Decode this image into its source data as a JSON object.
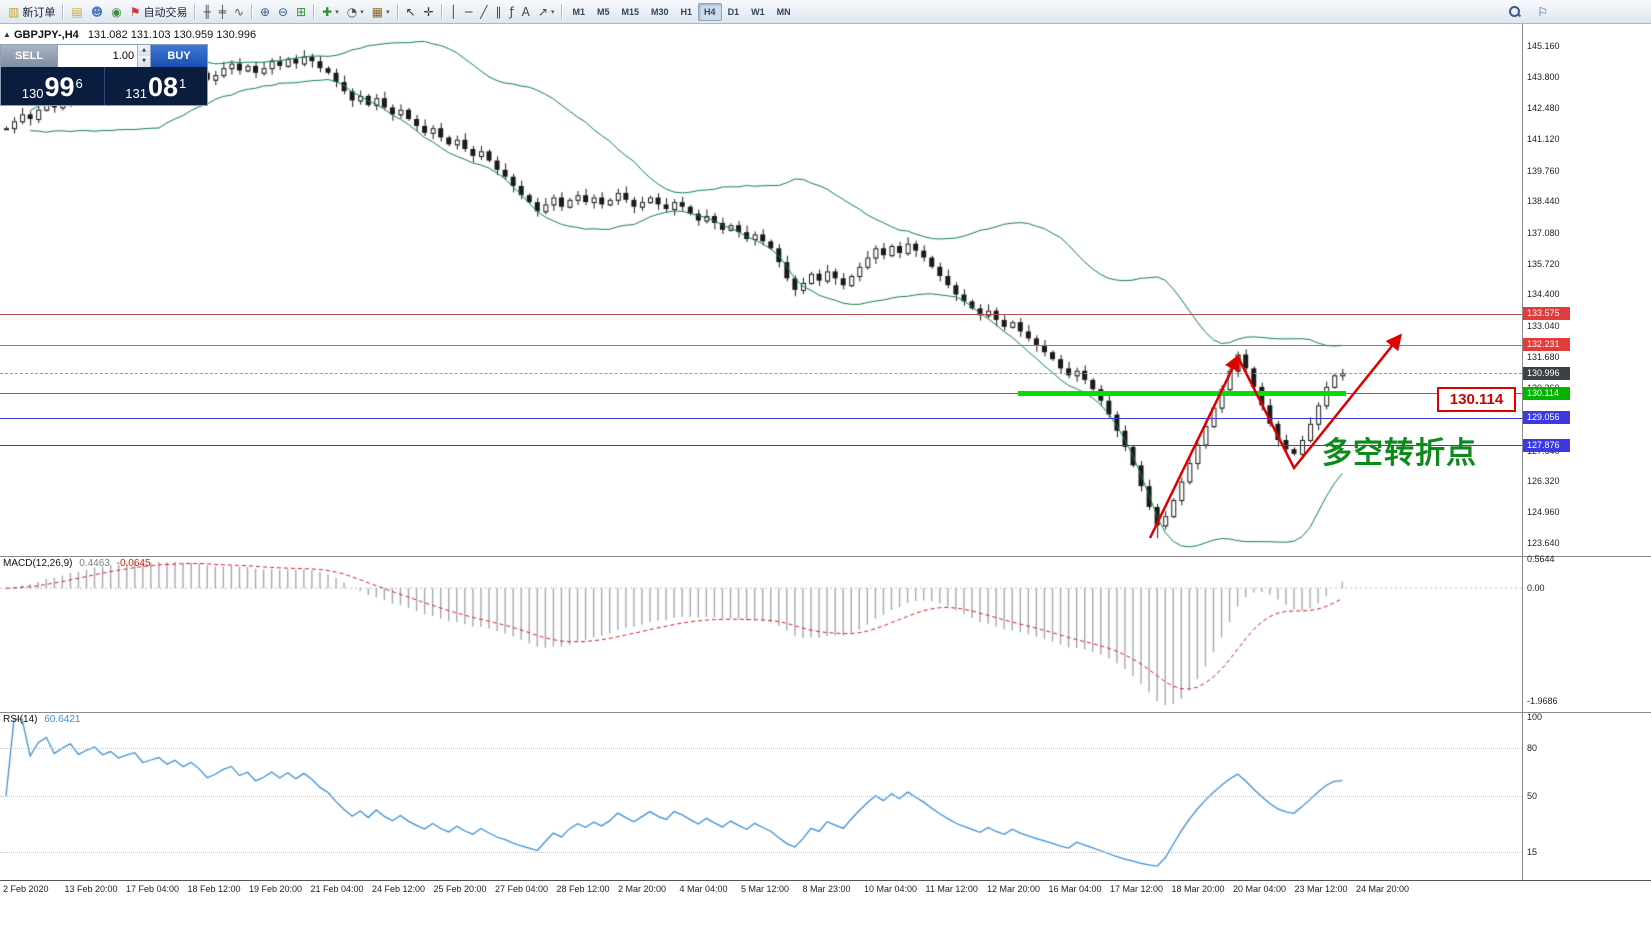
{
  "toolbar": {
    "items": [
      {
        "name": "new-order-button",
        "icon": "new-order-icon",
        "glyph": "▥",
        "color": "#c9a227",
        "label": "新订单"
      },
      {
        "type": "sep"
      },
      {
        "name": "chart-window-button",
        "icon": "chart-window-icon",
        "glyph": "▤",
        "color": "#caa53c"
      },
      {
        "name": "profile-button",
        "icon": "profile-icon",
        "glyph": "☻",
        "color": "#4a7dc0"
      },
      {
        "name": "market-watch-button",
        "icon": "market-watch-icon",
        "glyph": "◉",
        "color": "#3f8a3f"
      },
      {
        "name": "autotrading-button",
        "icon": "autotrading-icon",
        "glyph": "⚑",
        "color": "#d03a3a",
        "label": "自动交易"
      },
      {
        "type": "sep"
      },
      {
        "name": "bar-chart-button",
        "icon": "bar-chart-icon",
        "glyph": "╫",
        "color": "#555555"
      },
      {
        "name": "candlestick-chart-button",
        "icon": "candlestick-icon",
        "glyph": "╪",
        "color": "#555555"
      },
      {
        "name": "line-chart-button",
        "icon": "line-chart-icon",
        "glyph": "∿",
        "color": "#555555"
      },
      {
        "type": "sep"
      },
      {
        "name": "zoom-in-button",
        "icon": "zoom-in-icon",
        "glyph": "⊕",
        "color": "#3b5b8c"
      },
      {
        "name": "zoom-out-button",
        "icon": "zoom-out-icon",
        "glyph": "⊖",
        "color": "#3b5b8c"
      },
      {
        "name": "tile-windows-button",
        "icon": "tile-windows-icon",
        "glyph": "⊞",
        "color": "#2f8f2f"
      },
      {
        "type": "sep"
      },
      {
        "name": "indicators-button",
        "icon": "indicators-icon",
        "glyph": "✚",
        "color": "#2f8f2f",
        "caret": true
      },
      {
        "name": "periods-button",
        "icon": "clock-icon",
        "glyph": "◔",
        "color": "#555555",
        "caret": true
      },
      {
        "name": "templates-button",
        "icon": "template-icon",
        "glyph": "▦",
        "color": "#8a6a2a",
        "caret": true
      },
      {
        "type": "sep"
      },
      {
        "name": "cursor-button",
        "icon": "cursor-icon",
        "glyph": "↖",
        "color": "#333333"
      },
      {
        "name": "crosshair-button",
        "icon": "crosshair-icon",
        "glyph": "✛",
        "color": "#333333"
      },
      {
        "type": "sep"
      },
      {
        "name": "vertical-line-button",
        "icon": "vertical-line-icon",
        "glyph": "│",
        "color": "#444444"
      },
      {
        "name": "horizontal-line-button",
        "icon": "horizontal-line-icon",
        "glyph": "─",
        "color": "#444444"
      },
      {
        "name": "trendline-button",
        "icon": "trendline-icon",
        "glyph": "╱",
        "color": "#444444"
      },
      {
        "name": "channel-button",
        "icon": "channel-icon",
        "glyph": "∥",
        "color": "#444444"
      },
      {
        "name": "fibonacci-button",
        "icon": "fibonacci-icon",
        "glyph": "ƒ",
        "color": "#444444"
      },
      {
        "name": "text-button",
        "icon": "text-icon",
        "glyph": "A",
        "color": "#444444"
      },
      {
        "name": "arrows-button",
        "icon": "arrow-shape-icon",
        "glyph": "↗",
        "color": "#444444",
        "caret": true
      }
    ],
    "timeframes": [
      "M1",
      "M5",
      "M15",
      "M30",
      "H1",
      "H4",
      "D1",
      "W1",
      "MN"
    ],
    "active_timeframe": "H4"
  },
  "chart": {
    "symbol_title": "GBPJPY-,H4",
    "ohlc": "131.082 131.103 130.959 130.996",
    "price_axis": [
      "145.160",
      "143.800",
      "142.480",
      "141.120",
      "139.760",
      "138.440",
      "137.080",
      "135.720",
      "134.400",
      "133.040",
      "131.680",
      "130.360",
      "129.000",
      "127.640",
      "126.320",
      "124.960",
      "123.640"
    ],
    "time_axis": [
      "2 Feb 2020",
      "13 Feb 20:00",
      "17 Feb 04:00",
      "18 Feb 12:00",
      "19 Feb 20:00",
      "21 Feb 04:00",
      "24 Feb 12:00",
      "25 Feb 20:00",
      "27 Feb 04:00",
      "28 Feb 12:00",
      "2 Mar 20:00",
      "4 Mar 04:00",
      "5 Mar 12:00",
      "8 Mar 23:00",
      "10 Mar 04:00",
      "11 Mar 12:00",
      "12 Mar 20:00",
      "16 Mar 04:00",
      "17 Mar 12:00",
      "18 Mar 20:00",
      "20 Mar 04:00",
      "23 Mar 12:00",
      "24 Mar 20:00"
    ],
    "hlines": [
      {
        "name": "resistance-line-1",
        "label": "133.575",
        "price": 133.575,
        "line_color": "#b05050",
        "tag_color": "#e23b3b",
        "style": "solid"
      },
      {
        "name": "resistance-line-2",
        "label": "132.231",
        "price": 132.231,
        "line_color": "#ff4a4a",
        "tag_color": "#e23b3b",
        "style": "solid"
      },
      {
        "name": "bid-price-line",
        "label": "130.996",
        "price": 130.996,
        "line_color": "#9a9a9a",
        "tag_color": "#3c4148",
        "style": "dashed"
      },
      {
        "name": "support-line-green",
        "label": "130.114",
        "price": 130.114,
        "line_color": "#00b400",
        "tag_color": "#00b400",
        "style": "solid"
      },
      {
        "name": "support-line-blue-1",
        "label": "129.056",
        "price": 129.056,
        "line_color": "#3a3ad0",
        "tag_color": "#3a3ae0",
        "style": "solid"
      },
      {
        "name": "support-line-blue-2",
        "label": "127.876",
        "price": 127.876,
        "line_color": "#3a3ad0",
        "tag_color": "#3a3ae0",
        "style": "solid"
      }
    ],
    "thick_segment": {
      "price": 130.114,
      "color": "#00e000"
    }
  },
  "trade": {
    "sell_label": "SELL",
    "buy_label": "BUY",
    "volume": "1.00",
    "sell_price_small": "130",
    "sell_price_big": "99",
    "sell_price_sup": "6",
    "buy_price_small": "131",
    "buy_price_big": "08",
    "buy_price_sup": "1"
  },
  "macd": {
    "title": "MACD(12,26,9)",
    "value_main": "0.4463",
    "value_signal": "-0.0645",
    "scale_top": "0.5644",
    "scale_zero": "0.00",
    "scale_bottom": "-1.9686"
  },
  "rsi": {
    "title": "RSI(14)",
    "value": "60.6421",
    "scale_top": "100",
    "levels": [
      80,
      50,
      15
    ]
  },
  "annotations": {
    "turning_point_text": "多空转折点",
    "level_label": "130.114",
    "arrow_color": "#dd0000"
  },
  "chart_data": {
    "type": "candlestick",
    "symbol": "GBPJPY",
    "period": "H4",
    "price_range": [
      123.64,
      145.16
    ],
    "bollinger": {
      "period": 20,
      "deviation": 2,
      "color": "#0e8048"
    },
    "macd_params": [
      12,
      26,
      9
    ],
    "rsi_period": 14,
    "closes": [
      141.6,
      141.9,
      142.2,
      142.0,
      142.4,
      142.7,
      142.5,
      142.8,
      143.1,
      142.9,
      143.2,
      143.5,
      143.3,
      143.6,
      143.4,
      143.7,
      143.9,
      143.6,
      143.8,
      144.0,
      143.8,
      144.1,
      143.9,
      144.2,
      144.0,
      143.7,
      143.9,
      144.2,
      144.4,
      144.1,
      144.3,
      144.0,
      144.2,
      144.5,
      144.3,
      144.6,
      144.4,
      144.7,
      144.5,
      144.2,
      144.0,
      143.6,
      143.2,
      142.8,
      143.0,
      142.6,
      142.9,
      142.5,
      142.2,
      142.4,
      142.0,
      141.7,
      141.4,
      141.6,
      141.2,
      140.9,
      141.1,
      140.7,
      140.4,
      140.6,
      140.2,
      139.8,
      139.5,
      139.1,
      138.7,
      138.4,
      138.0,
      138.3,
      138.6,
      138.2,
      138.5,
      138.7,
      138.4,
      138.6,
      138.3,
      138.5,
      138.8,
      138.5,
      138.2,
      138.4,
      138.6,
      138.3,
      138.1,
      138.4,
      138.2,
      137.9,
      137.6,
      137.8,
      137.5,
      137.2,
      137.4,
      137.1,
      136.8,
      137.0,
      136.7,
      136.4,
      135.8,
      135.1,
      134.6,
      134.9,
      135.3,
      135.0,
      135.4,
      135.1,
      134.8,
      135.2,
      135.6,
      136.0,
      136.4,
      136.1,
      136.5,
      136.2,
      136.6,
      136.3,
      136.0,
      135.6,
      135.2,
      134.8,
      134.4,
      134.1,
      133.8,
      133.5,
      133.7,
      133.3,
      133.0,
      133.2,
      132.8,
      132.5,
      132.2,
      131.9,
      131.6,
      131.2,
      130.9,
      131.1,
      130.7,
      130.3,
      129.8,
      129.2,
      128.5,
      127.8,
      127.0,
      126.1,
      125.2,
      124.4,
      124.8,
      125.5,
      126.3,
      127.1,
      127.9,
      128.7,
      129.5,
      130.3,
      131.1,
      131.8,
      131.2,
      130.4,
      129.6,
      128.8,
      128.1,
      127.7,
      127.5,
      128.1,
      128.8,
      129.6,
      130.4,
      130.9,
      130.996
    ]
  }
}
